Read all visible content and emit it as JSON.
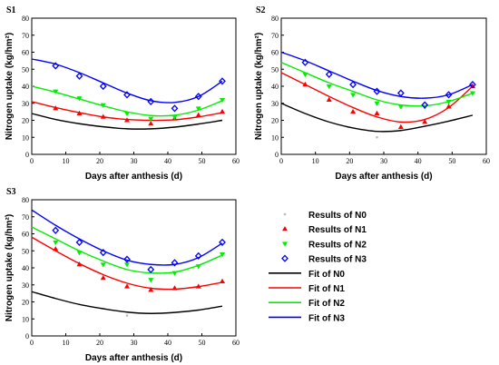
{
  "colors": {
    "N0": "#b8b8b8",
    "N1": "#ff0000",
    "N2": "#00ee00",
    "N3": "#0000ff",
    "fitN0": "#000000"
  },
  "markers": {
    "N0": "dot",
    "N1": "triangle-up",
    "N2": "triangle-down",
    "N3": "diamond-open"
  },
  "legend": {
    "position": "bottom-right",
    "items": [
      {
        "key": "N0",
        "kind": "marker",
        "label": "Results of  N0"
      },
      {
        "key": "N1",
        "kind": "marker",
        "label": "Results of  N1"
      },
      {
        "key": "N2",
        "kind": "marker",
        "label": "Results of  N2"
      },
      {
        "key": "N3",
        "kind": "marker",
        "label": "Results of  N3"
      },
      {
        "key": "N0",
        "kind": "line",
        "label": "Fit of  N0"
      },
      {
        "key": "N1",
        "kind": "line",
        "label": "Fit of  N1"
      },
      {
        "key": "N2",
        "kind": "line",
        "label": "Fit of  N2"
      },
      {
        "key": "N3",
        "kind": "line",
        "label": "Fit of  N3"
      }
    ]
  },
  "chart_data": [
    {
      "type": "scatter",
      "title": "S1",
      "xlabel": "Days after anthesis (d)",
      "ylabel": "Nitrogen uptake (kg/hm²)",
      "xlim": [
        0,
        60
      ],
      "ylim": [
        0,
        80
      ],
      "xticks": [
        0,
        10,
        20,
        30,
        40,
        50,
        60
      ],
      "yticks": [
        0,
        10,
        20,
        30,
        40,
        50,
        60,
        70,
        80
      ],
      "x": [
        0,
        7,
        14,
        21,
        28,
        35,
        42,
        49,
        56
      ],
      "series": [
        {
          "key": "N0",
          "points": [],
          "fit": [
            [
              0,
              24
            ],
            [
              7,
              20.5
            ],
            [
              14,
              18
            ],
            [
              21,
              16.2
            ],
            [
              28,
              15
            ],
            [
              35,
              15
            ],
            [
              42,
              16
            ],
            [
              49,
              17.8
            ],
            [
              56,
              20
            ]
          ]
        },
        {
          "key": "N1",
          "points": [
            [
              7,
              27
            ],
            [
              14,
              24
            ],
            [
              21,
              22
            ],
            [
              28,
              20
            ],
            [
              35,
              18
            ],
            [
              42,
              21
            ],
            [
              49,
              23
            ],
            [
              56,
              25
            ]
          ],
          "fit": [
            [
              0,
              31
            ],
            [
              7,
              27.5
            ],
            [
              14,
              24.5
            ],
            [
              21,
              22
            ],
            [
              28,
              20.5
            ],
            [
              35,
              20
            ],
            [
              42,
              20.3
            ],
            [
              49,
              22
            ],
            [
              56,
              24.5
            ]
          ]
        },
        {
          "key": "N2",
          "points": [
            [
              7,
              37
            ],
            [
              14,
              33
            ],
            [
              21,
              29
            ],
            [
              28,
              24
            ],
            [
              35,
              21
            ],
            [
              42,
              22
            ],
            [
              49,
              27
            ],
            [
              56,
              32
            ]
          ],
          "fit": [
            [
              0,
              40
            ],
            [
              7,
              36.5
            ],
            [
              14,
              32.5
            ],
            [
              21,
              28.5
            ],
            [
              28,
              25
            ],
            [
              35,
              22.8
            ],
            [
              42,
              23
            ],
            [
              49,
              26
            ],
            [
              56,
              31.5
            ]
          ]
        },
        {
          "key": "N3",
          "points": [
            [
              7,
              52
            ],
            [
              14,
              46
            ],
            [
              21,
              40
            ],
            [
              28,
              35
            ],
            [
              35,
              31
            ],
            [
              42,
              27
            ],
            [
              49,
              34
            ],
            [
              56,
              43
            ]
          ],
          "fit": [
            [
              0,
              56
            ],
            [
              7,
              53
            ],
            [
              14,
              48
            ],
            [
              21,
              42
            ],
            [
              28,
              36
            ],
            [
              35,
              31.5
            ],
            [
              42,
              30.5
            ],
            [
              49,
              34
            ],
            [
              56,
              43
            ]
          ]
        }
      ]
    },
    {
      "type": "scatter",
      "title": "S2",
      "xlabel": "Days after anthesis (d)",
      "ylabel": "Nitrogen uptake (kg/hm²)",
      "xlim": [
        0,
        60
      ],
      "ylim": [
        0,
        80
      ],
      "xticks": [
        0,
        10,
        20,
        30,
        40,
        50,
        60
      ],
      "yticks": [
        0,
        10,
        20,
        30,
        40,
        50,
        60,
        70,
        80
      ],
      "x": [
        0,
        7,
        14,
        21,
        28,
        35,
        42,
        49,
        56
      ],
      "series": [
        {
          "key": "N0",
          "points": [
            [
              28,
              10
            ]
          ],
          "fit": [
            [
              0,
              30
            ],
            [
              7,
              24
            ],
            [
              14,
              19
            ],
            [
              21,
              15.5
            ],
            [
              28,
              13.5
            ],
            [
              35,
              14
            ],
            [
              42,
              16.5
            ],
            [
              49,
              19.5
            ],
            [
              56,
              23
            ]
          ]
        },
        {
          "key": "N1",
          "points": [
            [
              7,
              41
            ],
            [
              14,
              32
            ],
            [
              21,
              25
            ],
            [
              28,
              24
            ],
            [
              35,
              16
            ],
            [
              42,
              19
            ],
            [
              49,
              28
            ],
            [
              56,
              40
            ]
          ],
          "fit": [
            [
              0,
              48
            ],
            [
              7,
              41
            ],
            [
              14,
              34
            ],
            [
              21,
              27.5
            ],
            [
              28,
              22
            ],
            [
              35,
              19
            ],
            [
              42,
              20.5
            ],
            [
              49,
              27.5
            ],
            [
              56,
              40
            ]
          ]
        },
        {
          "key": "N2",
          "points": [
            [
              7,
              47
            ],
            [
              14,
              40
            ],
            [
              21,
              35
            ],
            [
              28,
              30
            ],
            [
              35,
              28
            ],
            [
              42,
              28
            ],
            [
              49,
              31
            ],
            [
              56,
              36
            ]
          ],
          "fit": [
            [
              0,
              54
            ],
            [
              7,
              48
            ],
            [
              14,
              42
            ],
            [
              21,
              37
            ],
            [
              28,
              32
            ],
            [
              35,
              29
            ],
            [
              42,
              28.5
            ],
            [
              49,
              31
            ],
            [
              56,
              36
            ]
          ]
        },
        {
          "key": "N3",
          "points": [
            [
              7,
              54
            ],
            [
              14,
              47
            ],
            [
              21,
              41
            ],
            [
              28,
              37
            ],
            [
              35,
              36
            ],
            [
              42,
              29
            ],
            [
              49,
              35
            ],
            [
              56,
              41
            ]
          ],
          "fit": [
            [
              0,
              60
            ],
            [
              7,
              55
            ],
            [
              14,
              49
            ],
            [
              21,
              43
            ],
            [
              28,
              37.5
            ],
            [
              35,
              34
            ],
            [
              42,
              33
            ],
            [
              49,
              35
            ],
            [
              56,
              41
            ]
          ]
        }
      ]
    },
    {
      "type": "scatter",
      "title": "S3",
      "xlabel": "Days after anthesis (d)",
      "ylabel": "Nitrogen uptake (kg/hm²)",
      "xlim": [
        0,
        60
      ],
      "ylim": [
        0,
        80
      ],
      "xticks": [
        0,
        10,
        20,
        30,
        40,
        50,
        60
      ],
      "yticks": [
        0,
        10,
        20,
        30,
        40,
        50,
        60,
        70,
        80
      ],
      "x": [
        0,
        7,
        14,
        21,
        28,
        35,
        42,
        49,
        56
      ],
      "series": [
        {
          "key": "N0",
          "points": [
            [
              28,
              12
            ]
          ],
          "fit": [
            [
              0,
              26
            ],
            [
              7,
              22
            ],
            [
              14,
              18.5
            ],
            [
              21,
              16
            ],
            [
              28,
              14
            ],
            [
              35,
              13.2
            ],
            [
              42,
              13.8
            ],
            [
              49,
              15.2
            ],
            [
              56,
              17.5
            ]
          ]
        },
        {
          "key": "N1",
          "points": [
            [
              7,
              51
            ],
            [
              14,
              42
            ],
            [
              21,
              34
            ],
            [
              28,
              29
            ],
            [
              35,
              27
            ],
            [
              42,
              28
            ],
            [
              49,
              29
            ],
            [
              56,
              32
            ]
          ],
          "fit": [
            [
              0,
              58
            ],
            [
              7,
              50
            ],
            [
              14,
              42.5
            ],
            [
              21,
              36
            ],
            [
              28,
              31
            ],
            [
              35,
              28
            ],
            [
              42,
              27.5
            ],
            [
              49,
              29
            ],
            [
              56,
              31.5
            ]
          ]
        },
        {
          "key": "N2",
          "points": [
            [
              7,
              55
            ],
            [
              14,
              49
            ],
            [
              21,
              42
            ],
            [
              28,
              42
            ],
            [
              35,
              33
            ],
            [
              42,
              37
            ],
            [
              49,
              41
            ],
            [
              56,
              48
            ]
          ],
          "fit": [
            [
              0,
              64
            ],
            [
              7,
              57
            ],
            [
              14,
              50
            ],
            [
              21,
              44
            ],
            [
              28,
              39
            ],
            [
              35,
              37
            ],
            [
              42,
              37.5
            ],
            [
              49,
              41.5
            ],
            [
              56,
              47.5
            ]
          ]
        },
        {
          "key": "N3",
          "points": [
            [
              7,
              62
            ],
            [
              14,
              55
            ],
            [
              21,
              49
            ],
            [
              28,
              45
            ],
            [
              35,
              39
            ],
            [
              42,
              43
            ],
            [
              49,
              47
            ],
            [
              56,
              55
            ]
          ],
          "fit": [
            [
              0,
              74
            ],
            [
              7,
              65
            ],
            [
              14,
              57
            ],
            [
              21,
              50
            ],
            [
              28,
              44.5
            ],
            [
              35,
              42
            ],
            [
              42,
              42
            ],
            [
              49,
              46
            ],
            [
              56,
              54.5
            ]
          ]
        }
      ]
    }
  ]
}
